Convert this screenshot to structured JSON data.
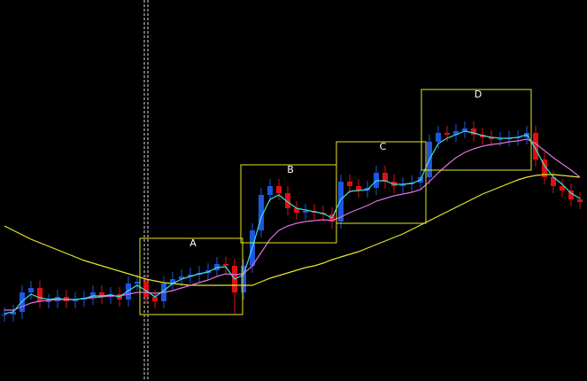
{
  "chart_data": {
    "type": "candlestick",
    "ylim": [
      0,
      430
    ],
    "up_color": "#1e56e0",
    "down_color": "#e01010",
    "close": [
      75,
      78,
      100,
      105,
      90,
      90,
      95,
      90,
      92,
      94,
      100,
      95,
      98,
      92,
      110,
      112,
      95,
      90,
      110,
      115,
      118,
      120,
      122,
      125,
      132,
      130,
      100,
      130,
      170,
      210,
      220,
      212,
      195,
      190,
      192,
      190,
      188,
      180,
      225,
      220,
      215,
      218,
      235,
      225,
      220,
      222,
      224,
      230,
      270,
      280,
      278,
      282,
      285,
      278,
      275,
      273,
      273,
      274,
      275,
      280,
      250,
      230,
      220,
      215,
      205,
      202
    ],
    "high": [
      83,
      86,
      108,
      113,
      113,
      98,
      103,
      103,
      100,
      102,
      108,
      108,
      106,
      106,
      118,
      120,
      120,
      103,
      118,
      123,
      126,
      128,
      130,
      133,
      140,
      140,
      138,
      138,
      178,
      218,
      228,
      228,
      220,
      203,
      200,
      200,
      198,
      196,
      233,
      233,
      228,
      226,
      243,
      243,
      233,
      230,
      232,
      238,
      278,
      288,
      288,
      290,
      293,
      293,
      286,
      283,
      281,
      282,
      283,
      288,
      288,
      258,
      238,
      228,
      223,
      213
    ],
    "low": [
      67,
      67,
      70,
      92,
      82,
      82,
      82,
      82,
      82,
      84,
      86,
      87,
      87,
      84,
      84,
      102,
      87,
      82,
      82,
      102,
      107,
      110,
      112,
      114,
      117,
      122,
      75,
      92,
      122,
      162,
      202,
      204,
      187,
      182,
      182,
      182,
      180,
      172,
      172,
      212,
      207,
      207,
      210,
      217,
      212,
      212,
      214,
      216,
      222,
      262,
      270,
      270,
      274,
      270,
      267,
      265,
      265,
      265,
      266,
      267,
      242,
      222,
      212,
      207,
      197,
      194
    ],
    "series": [
      {
        "color": "#e6e62a",
        "values": [
          175,
          170,
          165,
          160,
          156,
          152,
          148,
          144,
          140,
          136,
          133,
          130,
          127,
          124,
          121,
          118,
          115,
          113,
          111,
          110,
          109,
          108,
          108,
          108,
          108,
          108,
          108,
          108,
          108,
          112,
          116,
          119,
          122,
          125,
          128,
          130,
          133,
          137,
          140,
          143,
          146,
          150,
          154,
          158,
          162,
          166,
          171,
          176,
          181,
          186,
          191,
          196,
          201,
          206,
          211,
          215,
          219,
          223,
          227,
          230,
          232,
          233,
          233,
          232,
          231,
          230
        ]
      },
      {
        "color": "#e070e0",
        "values": [
          80,
          80,
          84,
          88,
          90,
          91,
          92,
          92,
          92,
          93,
          94,
          95,
          96,
          96,
          98,
          100,
          100,
          99,
          100,
          102,
          105,
          108,
          111,
          114,
          118,
          121,
          120,
          121,
          130,
          145,
          160,
          170,
          175,
          178,
          180,
          181,
          182,
          181,
          185,
          190,
          194,
          198,
          203,
          206,
          209,
          211,
          213,
          216,
          225,
          235,
          244,
          252,
          258,
          262,
          265,
          267,
          268,
          270,
          271,
          273,
          268,
          260,
          252,
          245,
          238,
          230
        ]
      },
      {
        "color": "#40e0e0",
        "values": [
          76,
          78,
          90,
          98,
          94,
          92,
          93,
          92,
          92,
          93,
          96,
          96,
          97,
          95,
          102,
          108,
          102,
          95,
          102,
          110,
          115,
          118,
          121,
          123,
          128,
          129,
          115,
          120,
          150,
          185,
          205,
          210,
          202,
          195,
          193,
          191,
          189,
          184,
          205,
          214,
          215,
          216,
          226,
          226,
          222,
          222,
          223,
          227,
          250,
          268,
          274,
          278,
          282,
          280,
          277,
          275,
          274,
          274,
          275,
          278,
          262,
          243,
          230,
          222,
          212,
          206
        ]
      }
    ],
    "annotations": [
      {
        "label": "A"
      },
      {
        "label": "B"
      },
      {
        "label": "C"
      },
      {
        "label": "D"
      }
    ],
    "box_color": "#e6e62a"
  }
}
